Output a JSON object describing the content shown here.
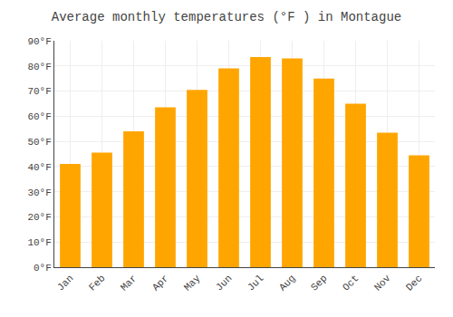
{
  "chart_data": {
    "type": "bar",
    "title": "Average monthly temperatures (°F ) in Montague",
    "categories": [
      "Jan",
      "Feb",
      "Mar",
      "Apr",
      "May",
      "Jun",
      "Jul",
      "Aug",
      "Sep",
      "Oct",
      "Nov",
      "Dec"
    ],
    "values": [
      41,
      45.5,
      54,
      63.5,
      70.5,
      79,
      83.5,
      83,
      75,
      65,
      53.5,
      44.5
    ],
    "color": "#FFA500",
    "ylim": [
      0,
      90
    ],
    "yticks": [
      {
        "value": 0,
        "label": "0°F"
      },
      {
        "value": 10,
        "label": "10°F"
      },
      {
        "value": 20,
        "label": "20°F"
      },
      {
        "value": 30,
        "label": "30°F"
      },
      {
        "value": 40,
        "label": "40°F"
      },
      {
        "value": 50,
        "label": "50°F"
      },
      {
        "value": 60,
        "label": "60°F"
      },
      {
        "value": 70,
        "label": "70°F"
      },
      {
        "value": 80,
        "label": "80°F"
      },
      {
        "value": 90,
        "label": "90°F"
      }
    ],
    "grid": true
  }
}
